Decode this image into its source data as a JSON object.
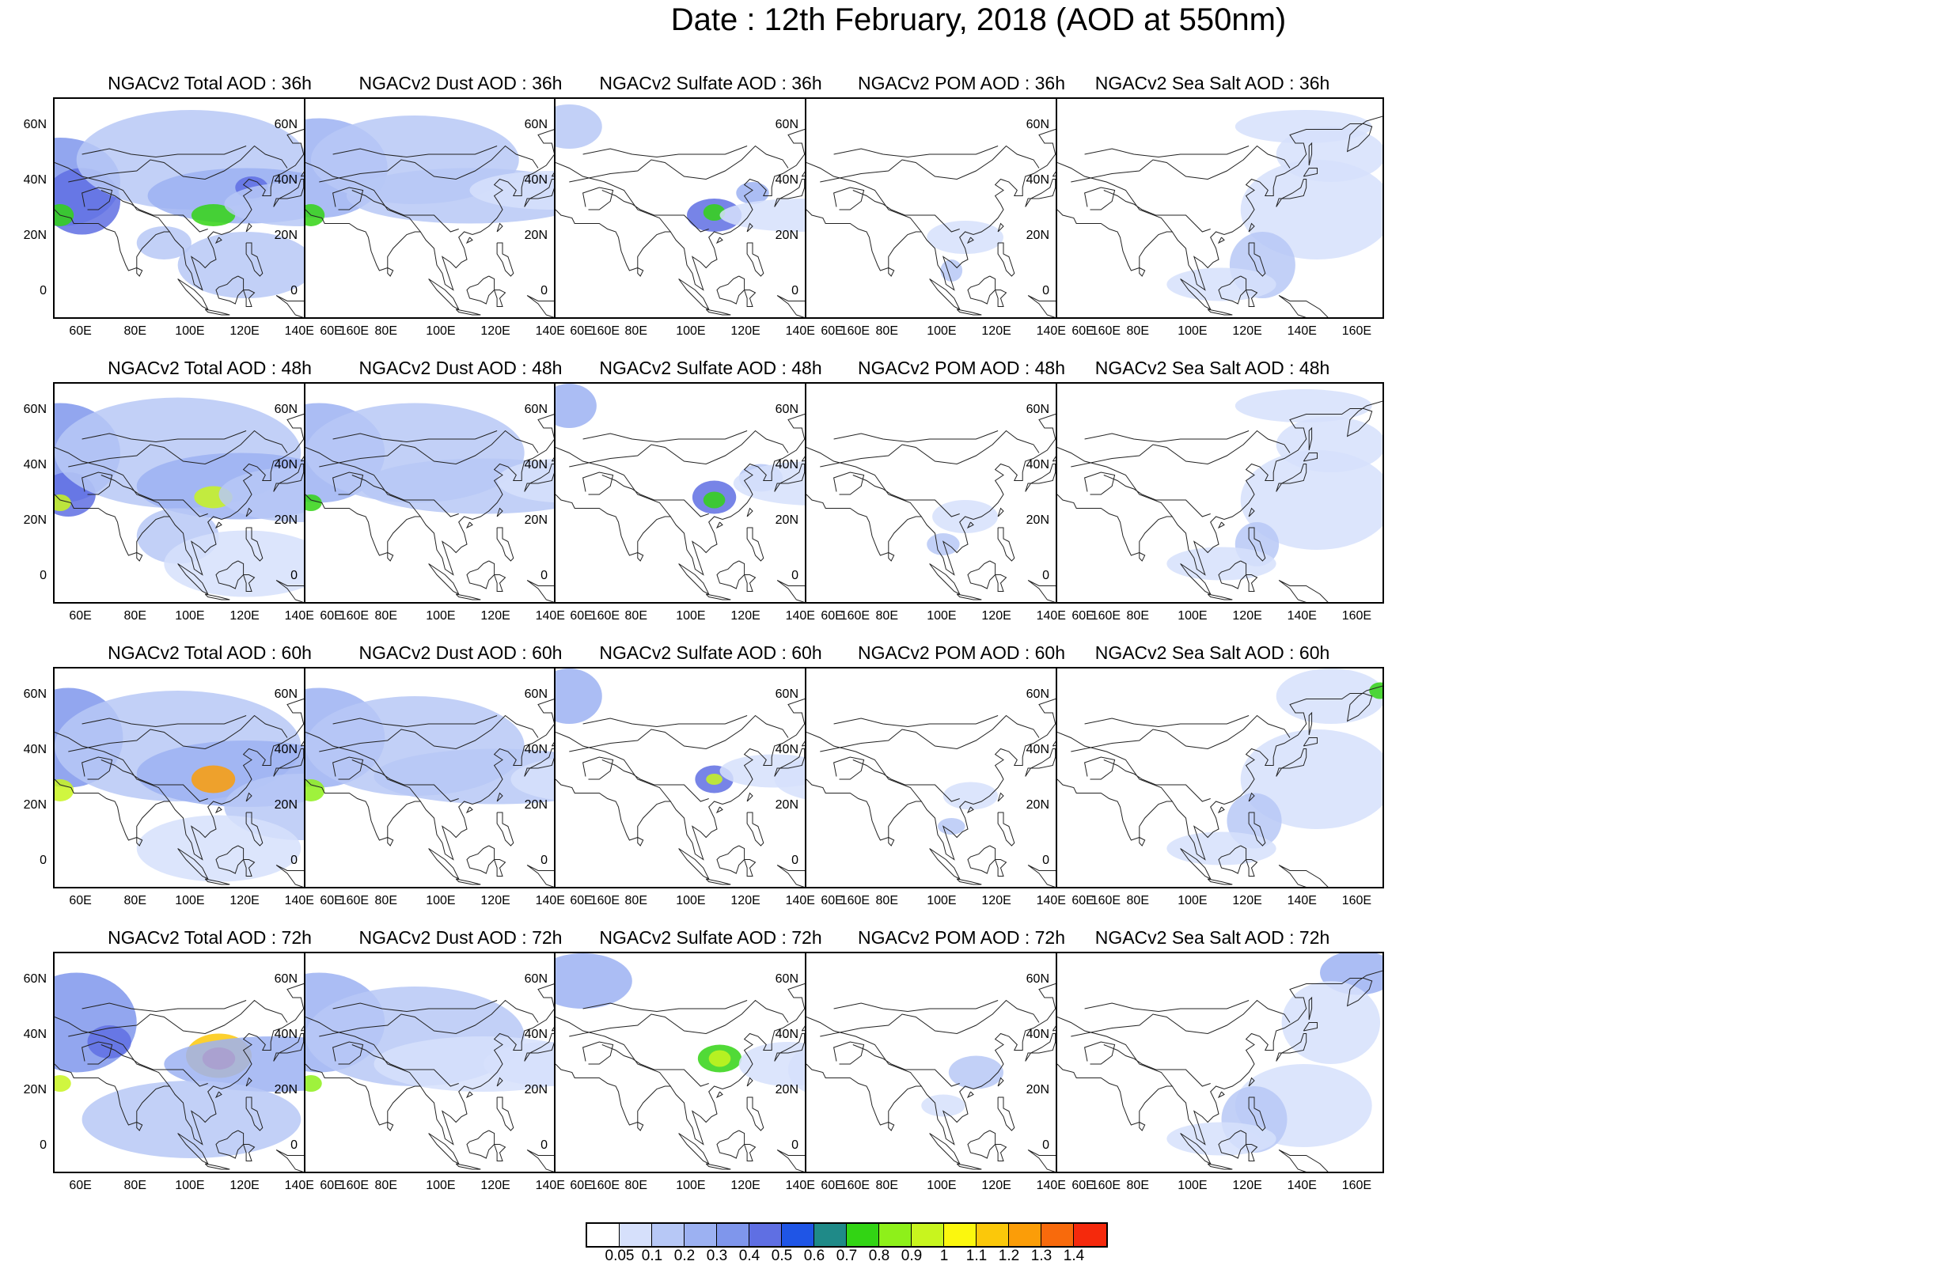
{
  "title": "Date : 12th February, 2018 (AOD at 550nm)",
  "lon_ticks": [
    "60E",
    "80E",
    "100E",
    "120E",
    "140E",
    "160E"
  ],
  "lat_ticks": [
    "60N",
    "40N",
    "20N",
    "0"
  ],
  "map_extent": {
    "lon": [
      50,
      170
    ],
    "lat": [
      -10,
      70
    ]
  },
  "panel_titles": [
    [
      "NGACv2 Total AOD : 36h",
      "NGACv2 Dust AOD : 36h",
      "NGACv2 Sulfate AOD : 36h",
      "NGACv2 POM AOD : 36h",
      "NGACv2 Sea Salt AOD : 36h"
    ],
    [
      "NGACv2 Total AOD : 48h",
      "NGACv2 Dust AOD : 48h",
      "NGACv2 Sulfate AOD : 48h",
      "NGACv2 POM AOD : 48h",
      "NGACv2 Sea Salt AOD : 48h"
    ],
    [
      "NGACv2 Total AOD : 60h",
      "NGACv2 Dust AOD : 60h",
      "NGACv2 Sulfate AOD : 60h",
      "NGACv2 POM AOD : 60h",
      "NGACv2 Sea Salt AOD : 60h"
    ],
    [
      "NGACv2 Total AOD : 72h",
      "NGACv2 Dust AOD : 72h",
      "NGACv2 Sulfate AOD : 72h",
      "NGACv2 POM AOD : 72h",
      "NGACv2 Sea Salt  AOD : 72h"
    ]
  ],
  "colorbar": {
    "labels": [
      "0.05",
      "0.1",
      "0.2",
      "0.3",
      "0.4",
      "0.5",
      "0.6",
      "0.7",
      "0.8",
      "0.9",
      "1",
      "1.1",
      "1.2",
      "1.3",
      "1.4"
    ],
    "colors": [
      "#ffffff",
      "#d6e0fb",
      "#b7c8f6",
      "#9cb1f2",
      "#7f96ec",
      "#5f6fe3",
      "#1f55e6",
      "#1f8a88",
      "#32d414",
      "#8ef01a",
      "#c8f51e",
      "#fbf70e",
      "#fbc80a",
      "#fb9d08",
      "#f86a0c",
      "#f5290c"
    ]
  }
}
